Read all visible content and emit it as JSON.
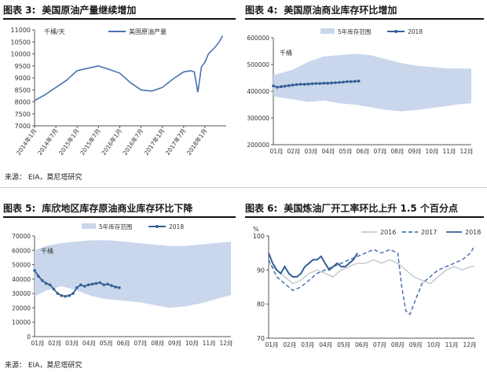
{
  "source_label": "来源：  EIA，莫尼塔研究",
  "chart_data": [
    {
      "id": "fig3",
      "type": "line",
      "title_num": "图表 3:",
      "title": "美国原油产量继续增加",
      "unit": "千桶/天",
      "legend": [
        "美国原油产量"
      ],
      "ylim": [
        7000,
        11000
      ],
      "yticks": [
        7000,
        7500,
        8000,
        8500,
        9000,
        9500,
        10000,
        10500,
        11000
      ],
      "xticks": [
        "2014年1月",
        "2014年7月",
        "2015年1月",
        "2015年7月",
        "2016年1月",
        "2016年7月",
        "2017年1月",
        "2017年7月",
        "2018年1月"
      ],
      "x_months": [
        0,
        3,
        6,
        9,
        12,
        15,
        18,
        21,
        24,
        27,
        30,
        33,
        36,
        39,
        42,
        44,
        45,
        46,
        47,
        48,
        49,
        50,
        51,
        52,
        53
      ],
      "series": [
        {
          "name": "美国原油产量",
          "color": "#4a72b0",
          "values": [
            8050,
            8300,
            8600,
            8900,
            9300,
            9400,
            9500,
            9350,
            9200,
            8800,
            8500,
            8450,
            8600,
            8950,
            9250,
            9300,
            9250,
            8400,
            9450,
            9650,
            10000,
            10150,
            10300,
            10500,
            10750
          ]
        }
      ]
    },
    {
      "id": "fig4",
      "type": "line",
      "title_num": "图表 4:",
      "title": "美国原油商业库存环比增加",
      "unit": "千桶",
      "legend": [
        "5年库存范围",
        "2018"
      ],
      "ylim": [
        200000,
        600000
      ],
      "yticks": [
        200000,
        300000,
        400000,
        500000,
        600000
      ],
      "xticks": [
        "01月",
        "02月",
        "03月",
        "04月",
        "05月",
        "06月",
        "07月",
        "08月",
        "09月",
        "10月",
        "11月",
        "12月"
      ],
      "band_weeks": [
        1,
        6,
        10,
        14,
        18,
        22,
        26,
        30,
        34,
        38,
        42,
        46,
        48,
        52
      ],
      "band_min": [
        380000,
        370000,
        360000,
        365000,
        355000,
        350000,
        340000,
        330000,
        325000,
        330000,
        338000,
        345000,
        350000,
        355000
      ],
      "band_max": [
        460000,
        480000,
        510000,
        530000,
        535000,
        540000,
        535000,
        520000,
        505000,
        495000,
        490000,
        485000,
        485000,
        485000
      ],
      "series": [
        {
          "name": "2018",
          "color": "#365f96",
          "weeks": [
            1,
            2,
            3,
            4,
            5,
            6,
            7,
            8,
            9,
            10,
            11,
            12,
            13,
            14,
            15,
            16,
            17,
            18,
            19,
            20,
            21,
            22,
            23
          ],
          "values": [
            420000,
            415000,
            417000,
            419000,
            421000,
            423000,
            425000,
            426000,
            426000,
            427000,
            428000,
            429000,
            429000,
            430000,
            430000,
            431000,
            432000,
            433000,
            434000,
            436000,
            436000,
            437000,
            438000
          ]
        }
      ]
    },
    {
      "id": "fig5",
      "type": "line",
      "title_num": "图表 5:",
      "title": "库欣地区库存原油商业库存环比下降",
      "unit": "千桶",
      "legend": [
        "5年库存范围",
        "2018"
      ],
      "ylim": [
        0,
        70000
      ],
      "yticks": [
        0,
        10000,
        20000,
        30000,
        40000,
        50000,
        60000,
        70000
      ],
      "xticks": [
        "01月",
        "02月",
        "03月",
        "04月",
        "05月",
        "06月",
        "07月",
        "08月",
        "09月",
        "10月",
        "11月",
        "12月"
      ],
      "band_weeks": [
        1,
        4,
        8,
        12,
        16,
        20,
        24,
        28,
        32,
        36,
        40,
        44,
        48,
        52
      ],
      "band_min": [
        28000,
        32000,
        35000,
        32000,
        28000,
        26000,
        25000,
        24000,
        22000,
        20000,
        21000,
        23000,
        26000,
        29000
      ],
      "band_max": [
        60000,
        63000,
        65000,
        66000,
        67000,
        67000,
        66000,
        65000,
        64000,
        63000,
        63000,
        64000,
        65000,
        66000
      ],
      "series": [
        {
          "name": "2018",
          "color": "#365f96",
          "weeks": [
            1,
            2,
            3,
            4,
            5,
            6,
            7,
            8,
            9,
            10,
            11,
            12,
            13,
            14,
            15,
            16,
            17,
            18,
            19,
            20,
            21,
            22,
            23
          ],
          "values": [
            46000,
            42000,
            39000,
            37000,
            36000,
            33000,
            30000,
            28500,
            28000,
            28500,
            30000,
            34000,
            36000,
            35000,
            36000,
            36500,
            37000,
            37500,
            36000,
            36500,
            35500,
            34500,
            34000
          ]
        }
      ]
    },
    {
      "id": "fig6",
      "type": "line",
      "title_num": "图表 6:",
      "title": "美国炼油厂开工率环比上升 1.5 个百分点",
      "unit": "%",
      "legend": [
        "2016",
        "2017",
        "2018"
      ],
      "ylim": [
        70,
        100
      ],
      "yticks": [
        70,
        80,
        90,
        100
      ],
      "xticks": [
        "01月",
        "02月",
        "03月",
        "04月",
        "05月",
        "06月",
        "07月",
        "08月",
        "09月",
        "10月",
        "11月",
        "12月"
      ],
      "series": [
        {
          "name": "2016",
          "color": "#c5cbd3",
          "dash": "",
          "weeks": [
            1,
            3,
            5,
            7,
            9,
            11,
            13,
            15,
            17,
            19,
            21,
            23,
            25,
            27,
            29,
            31,
            33,
            35,
            37,
            39,
            41,
            43,
            45,
            47,
            49,
            51,
            52
          ],
          "values": [
            92,
            90,
            88,
            86,
            87,
            89,
            90,
            89,
            88,
            90,
            91,
            92,
            92,
            93,
            92,
            93,
            92,
            90,
            88,
            87,
            86,
            88,
            90,
            91,
            90,
            91,
            91
          ]
        },
        {
          "name": "2017",
          "color": "#4a72b0",
          "dash": "5,3",
          "weeks": [
            1,
            3,
            5,
            7,
            9,
            11,
            13,
            15,
            17,
            19,
            21,
            23,
            25,
            27,
            29,
            31,
            33,
            34,
            35,
            36,
            37,
            39,
            41,
            43,
            45,
            47,
            49,
            51,
            52
          ],
          "values": [
            93,
            88,
            86,
            84,
            85,
            87,
            89,
            90,
            91,
            92,
            93,
            94,
            95,
            96,
            95,
            96,
            95,
            85,
            78,
            77,
            80,
            86,
            88,
            90,
            91,
            92,
            93,
            95,
            97
          ]
        },
        {
          "name": "2018",
          "color": "#365f96",
          "dash": "",
          "weeks": [
            1,
            2,
            3,
            4,
            5,
            6,
            7,
            8,
            9,
            10,
            11,
            12,
            13,
            14,
            15,
            16,
            17,
            18,
            19,
            20,
            21,
            22,
            23
          ],
          "values": [
            95,
            92,
            90,
            89,
            91,
            89,
            88,
            88,
            89,
            91,
            92,
            93,
            93,
            94,
            92,
            90,
            91,
            92,
            91,
            91,
            92,
            93,
            95
          ]
        }
      ]
    }
  ]
}
